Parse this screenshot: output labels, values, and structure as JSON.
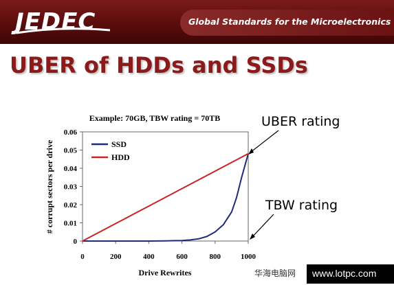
{
  "banner": {
    "logo": "JEDEC",
    "tagline": "Global Standards for the Microelectronics Industry",
    "colors": {
      "banner": "#5a0c0c",
      "title": "#8b1a1a"
    }
  },
  "slide": {
    "title": "UBER of HDDs and SSDs"
  },
  "annotations": {
    "uber": "UBER rating",
    "tbw": "TBW rating"
  },
  "watermark": {
    "site_name": "华海电脑网",
    "url": "www.lotpc.com"
  },
  "chart_data": {
    "type": "line",
    "title": "Example: 70GB, TBW rating = 70TB",
    "xlabel": "Drive Rewrites",
    "ylabel": "# corrupt sectors per drive",
    "xlim": [
      0,
      1000
    ],
    "ylim": [
      0,
      0.06
    ],
    "xticks": [
      0,
      200,
      400,
      600,
      800,
      1000
    ],
    "yticks": [
      0,
      0.01,
      0.02,
      0.03,
      0.04,
      0.05,
      0.06
    ],
    "xtick_labels": [
      "0",
      "200",
      "400",
      "600",
      "800",
      "1000"
    ],
    "ytick_labels": [
      "0",
      "0.01",
      "0.02",
      "0.03",
      "0.04",
      "0.05",
      "0.06"
    ],
    "grid": false,
    "legend_position": "top-left",
    "series": [
      {
        "name": "SSD",
        "color": "#1f2a7a",
        "x": [
          0,
          200,
          400,
          500,
          600,
          650,
          700,
          750,
          800,
          850,
          900,
          930,
          960,
          1000
        ],
        "y": [
          0,
          0,
          0,
          0.0001,
          0.0003,
          0.0006,
          0.0012,
          0.0025,
          0.005,
          0.009,
          0.016,
          0.024,
          0.035,
          0.048
        ]
      },
      {
        "name": "HDD",
        "color": "#cc2222",
        "x": [
          0,
          1000
        ],
        "y": [
          0,
          0.048
        ]
      }
    ]
  }
}
